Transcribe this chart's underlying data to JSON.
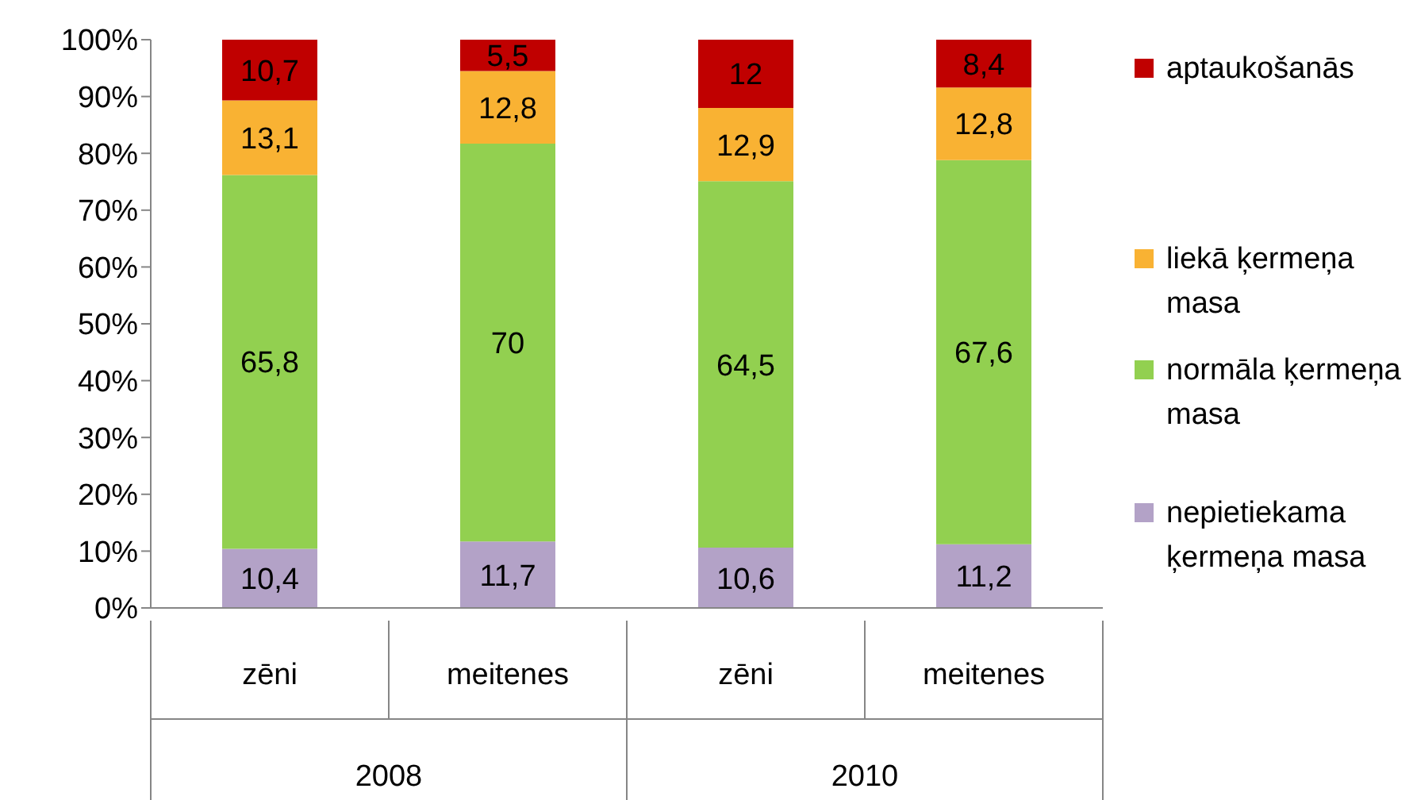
{
  "chart_data": {
    "type": "bar",
    "stacked": true,
    "categories": [
      "zēni",
      "meitenes",
      "zēni",
      "meitenes"
    ],
    "annotations": [
      "2008",
      "2010"
    ],
    "series": [
      {
        "name": "nepietiekama ķermeņa masa",
        "color": "#b3a2c7",
        "values": [
          10.4,
          11.7,
          10.6,
          11.2
        ],
        "value_labels": [
          "10,4",
          "11,7",
          "10,6",
          "11,2"
        ]
      },
      {
        "name": "normāla ķermeņa masa",
        "color": "#92d050",
        "values": [
          65.8,
          70,
          64.5,
          67.6
        ],
        "value_labels": [
          "65,8",
          "70",
          "64,5",
          "67,6"
        ]
      },
      {
        "name": "liekā ķermeņa masa",
        "color": "#f9b233",
        "values": [
          13.1,
          12.8,
          12.9,
          12.8
        ],
        "value_labels": [
          "13,1",
          "12,8",
          "12,9",
          "12,8"
        ]
      },
      {
        "name": "aptaukošanās",
        "color": "#c00000",
        "values": [
          10.7,
          5.5,
          12,
          8.4
        ],
        "value_labels": [
          "10,7",
          "5,5",
          "12",
          "8,4"
        ]
      }
    ],
    "ylim": [
      0,
      100
    ],
    "yticks": [
      {
        "value": 0,
        "label": "0%"
      },
      {
        "value": 10,
        "label": "10%"
      },
      {
        "value": 20,
        "label": "20%"
      },
      {
        "value": 30,
        "label": "30%"
      },
      {
        "value": 40,
        "label": "40%"
      },
      {
        "value": 50,
        "label": "50%"
      },
      {
        "value": 60,
        "label": "60%"
      },
      {
        "value": 70,
        "label": "70%"
      },
      {
        "value": 80,
        "label": "80%"
      },
      {
        "value": 90,
        "label": "90%"
      },
      {
        "value": 100,
        "label": "100%"
      }
    ],
    "grid": false,
    "legend": "right"
  }
}
